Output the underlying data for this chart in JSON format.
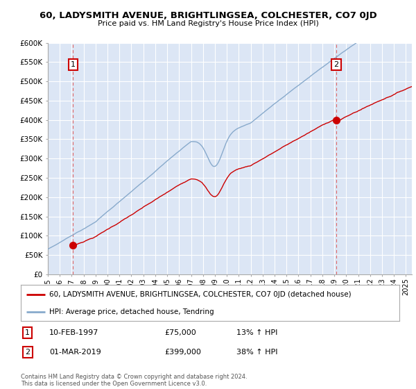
{
  "title": "60, LADYSMITH AVENUE, BRIGHTLINGSEA, COLCHESTER, CO7 0JD",
  "subtitle": "Price paid vs. HM Land Registry's House Price Index (HPI)",
  "ylim": [
    0,
    600000
  ],
  "yticks": [
    0,
    50000,
    100000,
    150000,
    200000,
    250000,
    300000,
    350000,
    400000,
    450000,
    500000,
    550000,
    600000
  ],
  "ytick_labels": [
    "£0",
    "£50K",
    "£100K",
    "£150K",
    "£200K",
    "£250K",
    "£300K",
    "£350K",
    "£400K",
    "£450K",
    "£500K",
    "£550K",
    "£600K"
  ],
  "xlim_start": 1995.0,
  "xlim_end": 2025.5,
  "plot_bg_color": "#dce6f5",
  "fig_bg_color": "#ffffff",
  "grid_color": "#ffffff",
  "sale1_x": 1997.11,
  "sale1_y": 75000,
  "sale1_label": "1",
  "sale1_date": "10-FEB-1997",
  "sale1_price": "£75,000",
  "sale1_hpi": "13% ↑ HPI",
  "sale2_x": 2019.17,
  "sale2_y": 399000,
  "sale2_label": "2",
  "sale2_date": "01-MAR-2019",
  "sale2_price": "£399,000",
  "sale2_hpi": "38% ↑ HPI",
  "line_color_property": "#cc0000",
  "line_color_hpi": "#88aacc",
  "legend_property": "60, LADYSMITH AVENUE, BRIGHTLINGSEA, COLCHESTER, CO7 0JD (detached house)",
  "legend_hpi": "HPI: Average price, detached house, Tendring",
  "footnote": "Contains HM Land Registry data © Crown copyright and database right 2024.\nThis data is licensed under the Open Government Licence v3.0.",
  "marker_box_color": "#cc0000",
  "dashed_line_color": "#dd6666"
}
